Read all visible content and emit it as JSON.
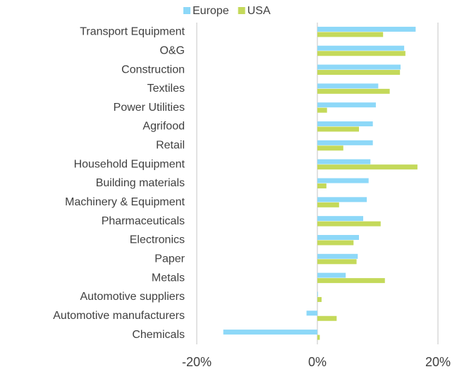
{
  "chart_data": {
    "type": "hbar",
    "categories": [
      "Transport Equipment",
      "O&G",
      "Construction",
      "Textiles",
      "Power Utilities",
      "Agrifood",
      "Retail",
      "Household Equipment",
      "Building materials",
      "Machinery & Equipment",
      "Pharmaceuticals",
      "Electronics",
      "Paper",
      "Metals",
      "Automotive suppliers",
      "Automotive manufacturers",
      "Chemicals"
    ],
    "series": [
      {
        "name": "Europe",
        "color": "#8dd8f8",
        "values": [
          16.3,
          14.4,
          13.8,
          10.1,
          9.7,
          9.2,
          9.2,
          8.8,
          8.5,
          8.2,
          7.6,
          6.9,
          6.7,
          4.7,
          0.1,
          -1.8,
          -15.6
        ]
      },
      {
        "name": "USA",
        "color": "#c4d95a",
        "values": [
          10.9,
          14.6,
          13.7,
          12.0,
          1.6,
          6.9,
          4.3,
          16.6,
          1.5,
          3.6,
          10.5,
          6.0,
          6.5,
          11.2,
          0.7,
          3.2,
          0.4
        ]
      }
    ],
    "xlim": [
      -20,
      20
    ],
    "xticks": [
      {
        "value": -20,
        "label": "-20%"
      },
      {
        "value": 0,
        "label": "0%"
      },
      {
        "value": 20,
        "label": "20%"
      }
    ],
    "grid": true,
    "legend": "top"
  }
}
